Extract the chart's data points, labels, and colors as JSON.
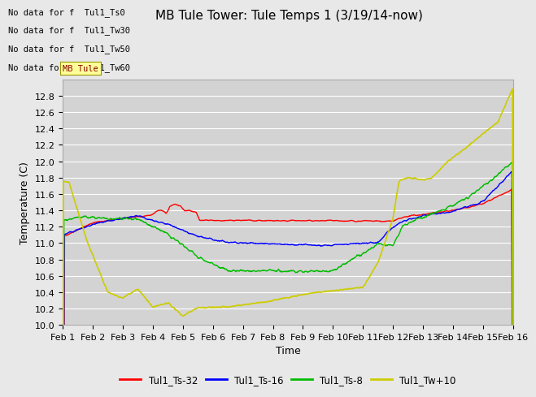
{
  "title": "MB Tule Tower: Tule Temps 1 (3/19/14-now)",
  "xlabel": "Time",
  "ylabel": "Temperature (C)",
  "ylim": [
    10.0,
    13.0
  ],
  "xlim": [
    0,
    15
  ],
  "xtick_labels": [
    "Feb 1",
    "Feb 2",
    "Feb 3",
    "Feb 4",
    "Feb 5",
    "Feb 6",
    "Feb 7",
    "Feb 8",
    "Feb 9",
    "Feb 10",
    "Feb 11",
    "Feb 12",
    "Feb 13",
    "Feb 14",
    "Feb 15",
    "Feb 16"
  ],
  "ytick_vals": [
    10.0,
    10.2,
    10.4,
    10.6,
    10.8,
    11.0,
    11.2,
    11.4,
    11.6,
    11.8,
    12.0,
    12.2,
    12.4,
    12.6,
    12.8
  ],
  "legend_entries": [
    "Tul1_Ts-32",
    "Tul1_Ts-16",
    "Tul1_Ts-8",
    "Tul1_Tw+10"
  ],
  "legend_colors": [
    "#ff0000",
    "#0000ff",
    "#00bb00",
    "#cccc00"
  ],
  "no_data_labels": [
    "No data for f  Tul1_Ts0",
    "No data for f  Tul1_Tw30",
    "No data for f  Tul1_Tw50",
    "No data for f  Tul1_Tw60"
  ],
  "mb_tule_label": "MB Tule",
  "background_color": "#e8e8e8",
  "plot_bg_color": "#d3d3d3",
  "grid_color": "#ffffff",
  "title_fontsize": 11,
  "axis_fontsize": 9,
  "tick_fontsize": 8,
  "nodata_fontsize": 7.5
}
